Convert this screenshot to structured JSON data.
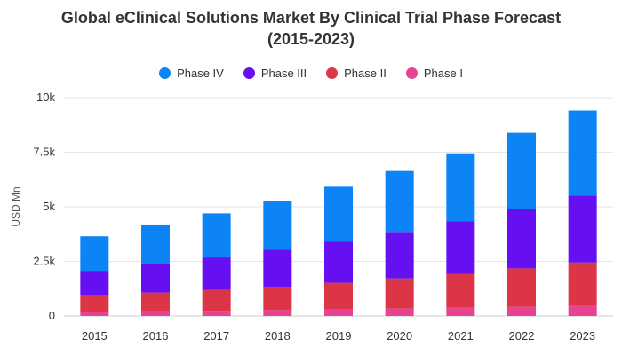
{
  "chart_data": {
    "type": "bar",
    "stacked": true,
    "title": "Global eClinical Solutions Market By Clinical Trial Phase Forecast",
    "subtitle": "(2015-2023)",
    "xlabel": "",
    "ylabel": "USD Mn",
    "categories": [
      "2015",
      "2016",
      "2017",
      "2018",
      "2019",
      "2020",
      "2021",
      "2022",
      "2023"
    ],
    "yticks": [
      {
        "value": 0,
        "label": "0"
      },
      {
        "value": 2500,
        "label": "2.5k"
      },
      {
        "value": 5000,
        "label": "5k"
      },
      {
        "value": 7500,
        "label": "7.5k"
      },
      {
        "value": 10000,
        "label": "10k"
      }
    ],
    "ylim": [
      0,
      10000
    ],
    "grid": true,
    "legend_position": "top-center",
    "series": [
      {
        "name": "Phase I",
        "color": "#e84393",
        "values": [
          180,
          210,
          230,
          270,
          300,
          340,
          380,
          420,
          470
        ]
      },
      {
        "name": "Phase II",
        "color": "#dc3545",
        "values": [
          780,
          860,
          960,
          1070,
          1220,
          1380,
          1550,
          1760,
          1980
        ]
      },
      {
        "name": "Phase III",
        "color": "#6610f2",
        "values": [
          1110,
          1300,
          1490,
          1690,
          1890,
          2130,
          2400,
          2730,
          3070
        ]
      },
      {
        "name": "Phase IV",
        "color": "#0d84f5",
        "values": [
          1580,
          1820,
          2020,
          2230,
          2510,
          2790,
          3120,
          3480,
          3890
        ]
      }
    ],
    "legend_order": [
      "Phase IV",
      "Phase III",
      "Phase II",
      "Phase I"
    ]
  }
}
